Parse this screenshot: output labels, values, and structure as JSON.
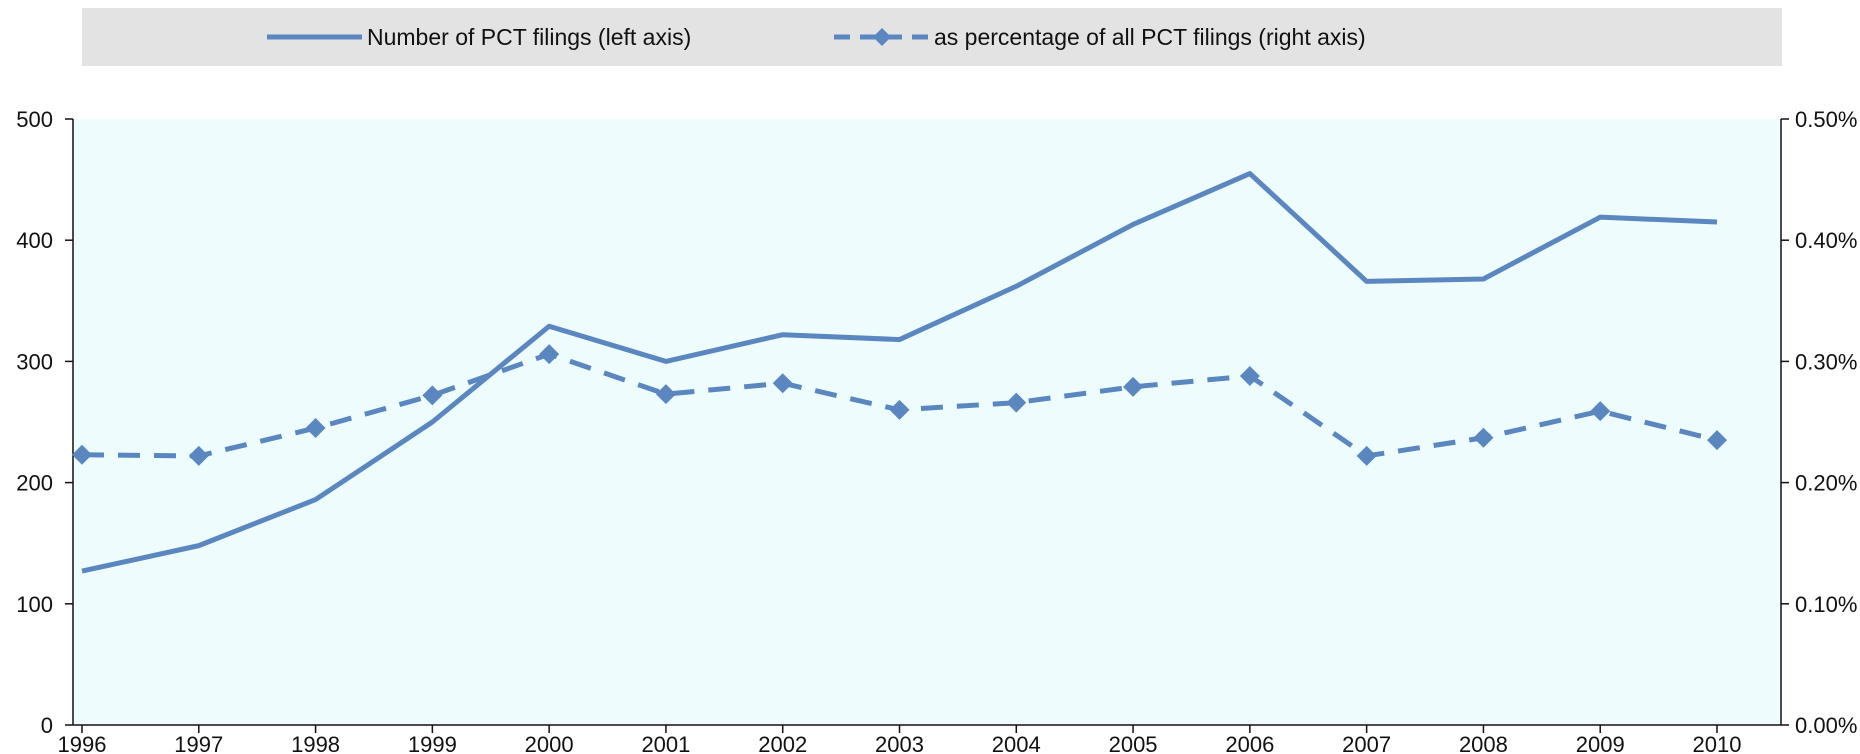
{
  "chart_data": {
    "type": "line",
    "categories": [
      "1996",
      "1997",
      "1998",
      "1999",
      "2000",
      "2001",
      "2002",
      "2003",
      "2004",
      "2005",
      "2006",
      "2007",
      "2008",
      "2009",
      "2010"
    ],
    "series": [
      {
        "name": "Number of PCT filings (left axis)",
        "axis": "left",
        "style": "solid",
        "color": "#5b87c0",
        "values": [
          127,
          148,
          186,
          250,
          329,
          300,
          322,
          318,
          362,
          413,
          455,
          366,
          368,
          419,
          415
        ]
      },
      {
        "name": "as percentage of all PCT filings (right axis)",
        "axis": "right",
        "style": "dashed-diamond",
        "color": "#5b87c0",
        "values": [
          0.223,
          0.222,
          0.245,
          0.272,
          0.306,
          0.273,
          0.282,
          0.26,
          0.266,
          0.279,
          0.288,
          0.222,
          0.237,
          0.259,
          0.235
        ],
        "unit": "%"
      }
    ],
    "y_left": {
      "min": 0,
      "max": 500,
      "ticks": [
        "0",
        "100",
        "200",
        "300",
        "400",
        "500"
      ]
    },
    "y_right": {
      "min": 0,
      "max": 0.5,
      "ticks": [
        "0.00%",
        "0.10%",
        "0.20%",
        "0.30%",
        "0.40%",
        "0.50%"
      ]
    },
    "plot_background": "#eefcfd",
    "legend_background": "#e3e3e3",
    "legend_position": "top",
    "grid": false
  }
}
